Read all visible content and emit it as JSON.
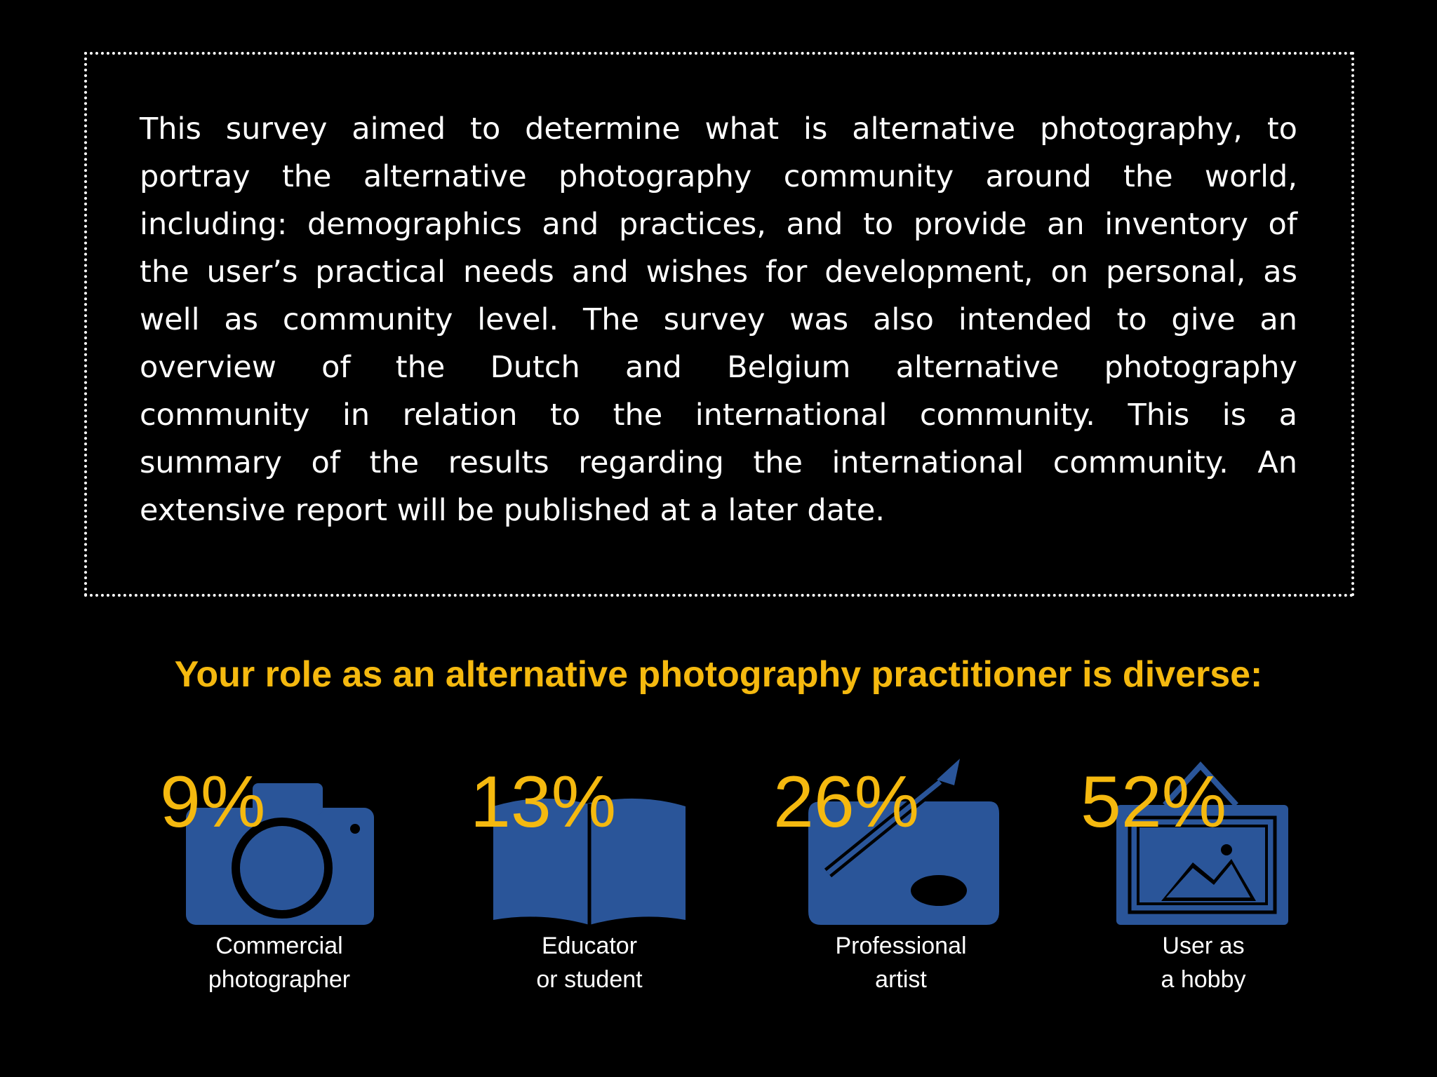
{
  "intro": {
    "lines": [
      "This survey aimed to determine what is alternative photography, to",
      "portray the alternative photography community around the world,",
      "including: demographics and practices, and to provide an inventory of",
      "the user’s practical needs and wishes for development, on personal, as",
      "well as community level. The survey was also intended to give an",
      "overview of the Dutch and Belgium alternative photography",
      "community in relation to the international community. This is a",
      "summary of the results regarding the international community. An",
      "extensive report will be published at a later date."
    ]
  },
  "heading": "Your role as an alternative photography practitioner is diverse:",
  "roles": [
    {
      "percent": "9%",
      "label_lines": [
        "Commercial",
        "photographer"
      ]
    },
    {
      "percent": "13%",
      "label_lines": [
        "Educator",
        "or student"
      ]
    },
    {
      "percent": "26%",
      "label_lines": [
        "Professional",
        "artist"
      ]
    },
    {
      "percent": "52%",
      "label_lines": [
        "User as",
        "a hobby"
      ]
    }
  ]
}
